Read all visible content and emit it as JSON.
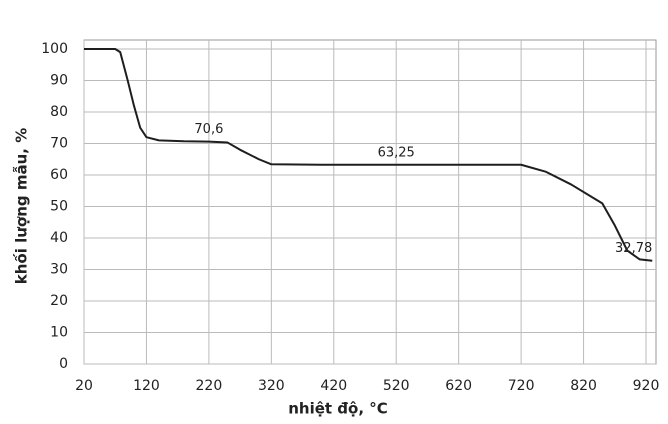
{
  "chart_data": {
    "type": "line",
    "xlabel": "nhiệt độ, °C",
    "ylabel": "khối lượng mẫu, %",
    "x": [
      20,
      70,
      78,
      90,
      100,
      110,
      120,
      140,
      180,
      220,
      250,
      270,
      300,
      320,
      400,
      600,
      720,
      760,
      800,
      850,
      870,
      890,
      910,
      930
    ],
    "series": [
      {
        "color": "#1e1e1e",
        "values": [
          100,
          100,
          99,
          90,
          82,
          75,
          72,
          71,
          70.7,
          70.6,
          70.3,
          68,
          65,
          63.4,
          63.25,
          63.25,
          63.25,
          61,
          57,
          51,
          44,
          36,
          33.2,
          32.78
        ]
      }
    ],
    "annotations": [
      {
        "x": 220,
        "y": 70.6,
        "label": "70,6"
      },
      {
        "x": 520,
        "y": 63.25,
        "label": "63,25"
      },
      {
        "x": 930,
        "y": 32.78,
        "label": "32,78"
      }
    ],
    "xlim": [
      20,
      936
    ],
    "ylim": [
      0,
      100
    ],
    "xticks": [
      20,
      120,
      220,
      320,
      420,
      520,
      620,
      720,
      820,
      920
    ],
    "yticks": [
      0,
      10,
      20,
      30,
      40,
      50,
      60,
      70,
      80,
      90,
      100
    ],
    "grid": true
  }
}
